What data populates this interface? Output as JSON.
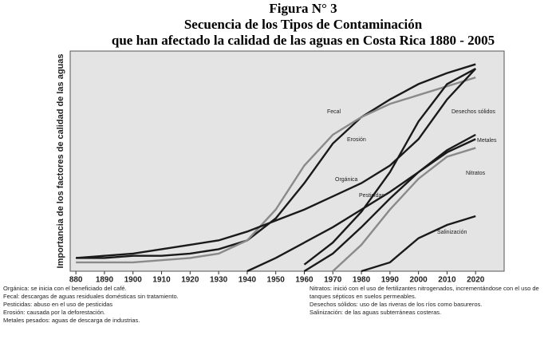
{
  "chart_data": {
    "type": "line",
    "title": [
      "Figura N° 3",
      "Secuencia de los Tipos de Contaminación",
      "que han afectado la calidad de las aguas en Costa Rica 1880 - 2005"
    ],
    "ylabel": "Importancia de los factores de calidad de las aguas",
    "x": [
      1880,
      1890,
      1900,
      1910,
      1920,
      1930,
      1940,
      1950,
      1960,
      1970,
      1980,
      1990,
      2000,
      2010,
      2020
    ],
    "xlim": [
      1878,
      2030
    ],
    "xticks": [
      {
        "value": 1880,
        "label": "880"
      },
      1890,
      1900,
      1910,
      1920,
      1930,
      1940,
      1950,
      1960,
      1970,
      1980,
      1990,
      2000,
      2010,
      2020
    ],
    "ylim": [
      0,
      100
    ],
    "series": [
      {
        "name": "Fecal",
        "color": "#1a1a1a",
        "values": [
          6,
          6,
          7,
          7,
          8,
          10,
          14,
          24,
          40,
          58,
          70,
          78,
          85,
          90,
          94
        ]
      },
      {
        "name": "Erosión",
        "color": "#8a8a8a",
        "values": [
          4,
          4,
          4,
          5,
          6,
          8,
          14,
          28,
          48,
          62,
          70,
          76,
          80,
          84,
          88
        ]
      },
      {
        "name": "Orgánica",
        "color": "#1a1a1a",
        "values": [
          6,
          7,
          8,
          10,
          12,
          14,
          18,
          23,
          28,
          34,
          40,
          48,
          60,
          78,
          92
        ]
      },
      {
        "name": "Pesticidas",
        "color": "#1a1a1a",
        "values": [
          null,
          null,
          null,
          null,
          null,
          null,
          0,
          6,
          13,
          20,
          28,
          36,
          45,
          54,
          60
        ]
      },
      {
        "name": "Desechos sólidos",
        "color": "#1a1a1a",
        "values": [
          null,
          null,
          null,
          null,
          null,
          null,
          null,
          null,
          3,
          13,
          27,
          45,
          68,
          85,
          92
        ]
      },
      {
        "name": "Metales",
        "color": "#1a1a1a",
        "values": [
          null,
          null,
          null,
          null,
          null,
          null,
          null,
          null,
          0,
          8,
          20,
          33,
          45,
          55,
          62
        ]
      },
      {
        "name": "Nitratos",
        "color": "#8a8a8a",
        "values": [
          null,
          null,
          null,
          null,
          null,
          null,
          null,
          null,
          null,
          0,
          12,
          28,
          42,
          52,
          56
        ]
      },
      {
        "name": "Salinización",
        "color": "#1a1a1a",
        "values": [
          null,
          null,
          null,
          null,
          null,
          null,
          null,
          null,
          null,
          null,
          0,
          4,
          15,
          21,
          25
        ]
      }
    ],
    "notes_left": [
      "Orgánica: se inicia con el beneficiado del café.",
      "Fecal: descargas de aguas residuales domésticas sin tratamiento.",
      "Pesticidas: abuso en el uso de pesticidas",
      "Erosión: causada por la deforestación.",
      "Metales pesados: aguas de descarga de industrias."
    ],
    "notes_right": [
      "Nitratos: inició con el uso de fertilizantes nitrogenados, incrementándose con el uso de tanques sépticos en suelos permeables.",
      "Desechos sólidos: uso de las riveras de los ríos como basureros.",
      "Salinización: de las aguas subterráneas costeras."
    ]
  }
}
